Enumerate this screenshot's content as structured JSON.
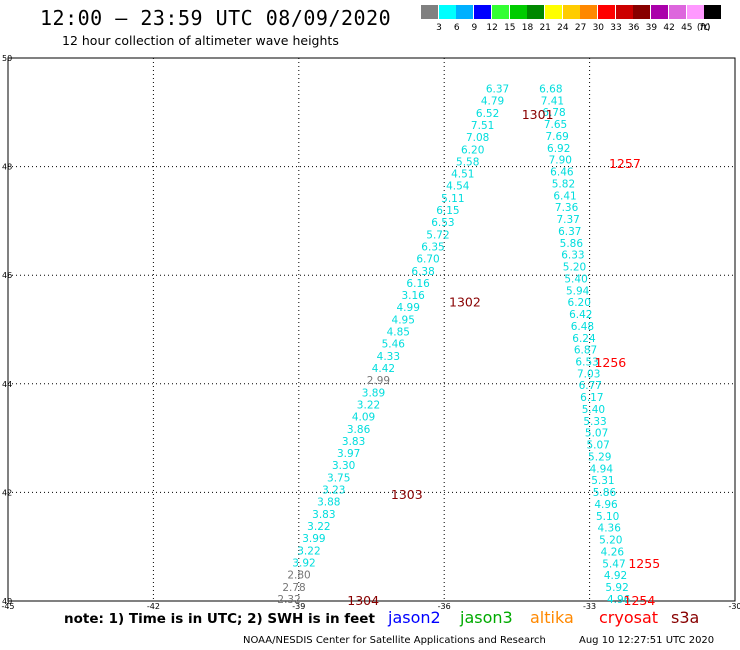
{
  "header": {
    "title": "12:00 – 23:59 UTC 08/09/2020",
    "subtitle": "12 hour collection of altimeter wave heights"
  },
  "colorbar": {
    "unit": "(ft)",
    "bins": [
      {
        "label": "3",
        "color": "#808080"
      },
      {
        "label": "6",
        "color": "#00ffff"
      },
      {
        "label": "9",
        "color": "#00b0ff"
      },
      {
        "label": "12",
        "color": "#0000ff"
      },
      {
        "label": "15",
        "color": "#33ff33"
      },
      {
        "label": "18",
        "color": "#00cc00"
      },
      {
        "label": "21",
        "color": "#008800"
      },
      {
        "label": "24",
        "color": "#ffff00"
      },
      {
        "label": "27",
        "color": "#ffcc00"
      },
      {
        "label": "30",
        "color": "#ff8800"
      },
      {
        "label": "33",
        "color": "#ff0000"
      },
      {
        "label": "36",
        "color": "#cc0000"
      },
      {
        "label": "39",
        "color": "#880000"
      },
      {
        "label": "42",
        "color": "#aa00aa"
      },
      {
        "label": "45",
        "color": "#dd66dd"
      },
      {
        "label": "70",
        "color": "#ff99ff"
      },
      {
        "label": "",
        "color": "#000000"
      }
    ]
  },
  "footer": {
    "notes": "note:  1) Time is in UTC;  2) SWH is in feet",
    "satellites": [
      {
        "name": "jason2",
        "color": "#0000ff"
      },
      {
        "name": "jason3",
        "color": "#00aa00"
      },
      {
        "name": "altika",
        "color": "#ff8800"
      },
      {
        "name": "cryosat",
        "color": "#ff0000"
      },
      {
        "name": "s3a",
        "color": "#880000"
      }
    ],
    "credit": "NOAA/NESDIS Center for Satellite Applications and Research",
    "timestamp": "Aug 10 12:27:51 UTC 2020"
  },
  "chart_data": {
    "type": "scatter",
    "xlim": [
      -45,
      -30
    ],
    "ylim": [
      40,
      50
    ],
    "x_ticks": [
      "-45",
      "-42",
      "-39",
      "-36",
      "-33",
      "-30"
    ],
    "y_ticks": [
      "40",
      "42",
      "44",
      "46",
      "48",
      "50"
    ],
    "grid": true,
    "track1": {
      "color": "#00dddd",
      "start": {
        "lon": -39.2,
        "lat": 40.02
      },
      "end": {
        "lon": -34.9,
        "lat": 49.42
      },
      "labels": [
        "2.32",
        "2.78",
        "2.80",
        "3.92",
        "3.22",
        "3.99",
        "3.22",
        "3.83",
        "3.88",
        "3.23",
        "3.75",
        "3.30",
        "3.97",
        "3.83",
        "3.86",
        "4.09",
        "3.22",
        "3.89",
        "2.99",
        "4.42",
        "4.33",
        "5.46",
        "4.85",
        "4.95",
        "4.99",
        "3.16",
        "6.16",
        "6.38",
        "6.70",
        "6.35",
        "5.72",
        "6.53",
        "6.15",
        "5.11",
        "4.54",
        "4.51",
        "5.58",
        "6.20",
        "7.08",
        "7.51",
        "6.52",
        "4.79",
        "6.37"
      ],
      "gray_labels": [
        "2.32",
        "2.78",
        "2.80",
        "2.99"
      ]
    },
    "track2": {
      "color": "#00dddd",
      "start": {
        "lon": -32.4,
        "lat": 40.02
      },
      "end": {
        "lon": -33.8,
        "lat": 49.42
      },
      "labels": [
        "4.96",
        "5.92",
        "4.92",
        "5.47",
        "4.26",
        "5.20",
        "4.36",
        "5.10",
        "4.96",
        "5.86",
        "5.31",
        "4.94",
        "5.29",
        "5.07",
        "5.07",
        "5.33",
        "5.40",
        "6.17",
        "6.77",
        "7.03",
        "6.53",
        "6.87",
        "6.24",
        "6.48",
        "6.42",
        "6.20",
        "5.94",
        "5.40",
        "5.20",
        "6.33",
        "5.86",
        "6.37",
        "7.37",
        "7.36",
        "6.41",
        "5.82",
        "6.46",
        "7.90",
        "6.92",
        "7.69",
        "7.65",
        "6.78",
        "7.41",
        "6.68"
      ]
    },
    "times": [
      {
        "label": "1304",
        "lon": -38.0,
        "lat": 40.0,
        "color": "#880000"
      },
      {
        "label": "1303",
        "lon": -37.1,
        "lat": 41.95,
        "color": "#880000"
      },
      {
        "label": "1302",
        "lon": -35.9,
        "lat": 45.5,
        "color": "#880000"
      },
      {
        "label": "1301",
        "lon": -34.4,
        "lat": 48.95,
        "color": "#880000"
      },
      {
        "label": "1257",
        "lon": -32.6,
        "lat": 48.05,
        "color": "#ff0000"
      },
      {
        "label": "1256",
        "lon": -32.9,
        "lat": 44.38,
        "color": "#ff0000"
      },
      {
        "label": "1255",
        "lon": -32.2,
        "lat": 40.68,
        "color": "#ff0000"
      },
      {
        "label": "1254",
        "lon": -32.3,
        "lat": 40.0,
        "color": "#ff0000"
      }
    ]
  }
}
